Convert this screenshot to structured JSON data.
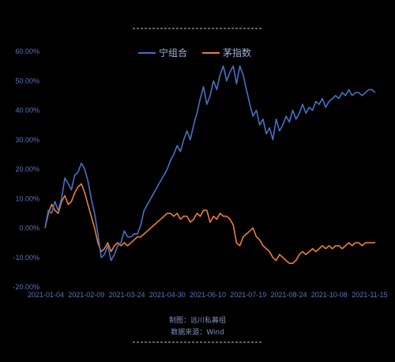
{
  "chart_data": {
    "type": "line",
    "x_tick_labels": [
      "2021-01-04",
      "2021-02-09",
      "2021-03-24",
      "2021-04-30",
      "2021-06-10",
      "2021-07-19",
      "2021-08-24",
      "2021-10-08",
      "2021-11-15"
    ],
    "y_tick_labels": [
      "60.00%",
      "50.00%",
      "40.00%",
      "30.00%",
      "20.00%",
      "10.00%",
      "0.00%",
      "-10.00%",
      "-20.00%"
    ],
    "ylim": [
      -20,
      60
    ],
    "grid": false,
    "legend_position": "top-center",
    "x_index_range": [
      0,
      100
    ],
    "series": [
      {
        "name": "宁组合",
        "color": "#4472c4",
        "x": [
          0,
          1,
          2,
          3,
          4,
          5,
          6,
          7,
          8,
          9,
          10,
          11,
          12,
          13,
          14,
          15,
          16,
          17,
          18,
          19,
          20,
          21,
          22,
          23,
          24,
          25,
          26,
          27,
          28,
          29,
          30,
          31,
          32,
          33,
          34,
          35,
          36,
          37,
          38,
          39,
          40,
          41,
          42,
          43,
          44,
          45,
          46,
          47,
          48,
          49,
          50,
          51,
          52,
          53,
          54,
          55,
          56,
          57,
          58,
          59,
          60,
          61,
          62,
          63,
          64,
          65,
          66,
          67,
          68,
          69,
          70,
          71,
          72,
          73,
          74,
          75,
          76,
          77,
          78,
          79,
          80,
          81,
          82,
          83,
          84,
          85,
          86,
          87,
          88,
          89,
          90,
          91,
          92,
          93,
          94,
          95,
          96,
          97,
          98,
          99,
          100
        ],
        "values": [
          0,
          6,
          5,
          9,
          6,
          10,
          17,
          15,
          13,
          18,
          19,
          22,
          20,
          16,
          10,
          5,
          -2,
          -10,
          -9,
          -6,
          -11,
          -9,
          -6,
          -5,
          -1,
          -3,
          -3,
          -2,
          -2,
          1,
          6,
          8,
          10,
          12,
          14,
          16,
          18,
          20,
          23,
          25,
          28,
          26,
          30,
          33,
          30,
          35,
          39,
          44,
          48,
          42,
          45,
          50,
          47,
          52,
          55,
          50,
          53,
          55,
          49,
          55,
          52,
          47,
          42,
          38,
          40,
          35,
          37,
          32,
          34,
          30,
          37,
          33,
          35,
          38,
          36,
          40,
          37,
          39,
          42,
          39,
          41,
          40,
          43,
          42,
          44,
          41,
          43,
          44,
          45,
          44,
          46,
          45,
          47,
          45,
          46,
          46,
          45,
          46,
          47,
          47,
          46
        ]
      },
      {
        "name": "茅指数",
        "color": "#ed7d31",
        "x": [
          0,
          1,
          2,
          3,
          4,
          5,
          6,
          7,
          8,
          9,
          10,
          11,
          12,
          13,
          14,
          15,
          16,
          17,
          18,
          19,
          20,
          21,
          22,
          23,
          24,
          25,
          26,
          27,
          28,
          29,
          30,
          31,
          32,
          33,
          34,
          35,
          36,
          37,
          38,
          39,
          40,
          41,
          42,
          43,
          44,
          45,
          46,
          47,
          48,
          49,
          50,
          51,
          52,
          53,
          54,
          55,
          56,
          57,
          58,
          59,
          60,
          61,
          62,
          63,
          64,
          65,
          66,
          67,
          68,
          69,
          70,
          71,
          72,
          73,
          74,
          75,
          76,
          77,
          78,
          79,
          80,
          81,
          82,
          83,
          84,
          85,
          86,
          87,
          88,
          89,
          90,
          91,
          92,
          93,
          94,
          95,
          96,
          97,
          98,
          99,
          100
        ],
        "values": [
          0,
          5,
          8,
          6,
          5,
          9,
          11,
          8,
          9,
          12,
          14,
          15,
          12,
          8,
          4,
          0,
          -5,
          -8,
          -7,
          -5,
          -8,
          -6,
          -5,
          -6,
          -5,
          -6,
          -5,
          -4,
          -3,
          -3,
          -2,
          -1,
          0,
          1,
          2,
          3,
          4,
          5,
          5,
          4,
          5,
          3,
          4,
          4,
          2,
          3,
          5,
          4,
          6,
          6,
          2,
          4,
          3,
          5,
          4,
          4,
          3,
          1,
          -5,
          -6,
          -3,
          -2,
          -1,
          0,
          -3,
          -4,
          -6,
          -7,
          -8,
          -10,
          -11,
          -9,
          -10,
          -11,
          -12,
          -12,
          -11,
          -9,
          -8,
          -9,
          -8,
          -7,
          -8,
          -7,
          -6,
          -7,
          -6,
          -7,
          -6,
          -6,
          -7,
          -6,
          -5,
          -6,
          -5,
          -5,
          -6,
          -5,
          -5,
          -5,
          -5
        ]
      }
    ]
  },
  "footer": {
    "line1": "制图：远川私募组",
    "line2": "数据来源：Wind"
  }
}
